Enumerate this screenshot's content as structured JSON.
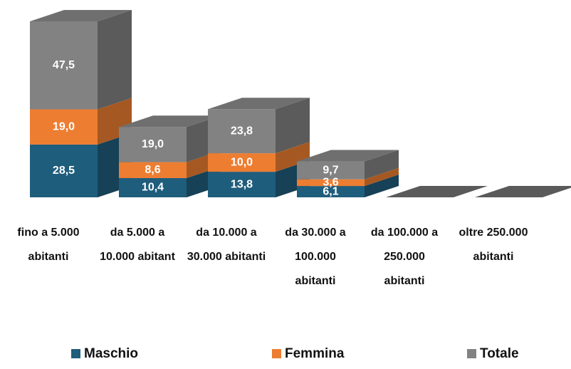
{
  "chart_data": {
    "type": "bar3d_stacked",
    "categories": [
      "fino a 5.000 abitanti",
      "da 5.000 a 10.000 abitant",
      "da 10.000 a 30.000 abitanti",
      "da 30.000 a 100.000 abitanti",
      "da 100.000 a 250.000 abitanti",
      "oltre 250.000 abitanti"
    ],
    "series": [
      {
        "name": "Maschio",
        "color": "#1f5d7c",
        "values": [
          28.5,
          10.4,
          13.8,
          6.1,
          null,
          null
        ],
        "value_labels": [
          "28,5",
          "10,4",
          "13,8",
          "6,1",
          null,
          null
        ]
      },
      {
        "name": "Femmina",
        "color": "#ed7d31",
        "values": [
          19.0,
          8.6,
          10.0,
          3.6,
          null,
          null
        ],
        "value_labels": [
          "19,0",
          "8,6",
          "10,0",
          "3,6",
          null,
          null
        ]
      },
      {
        "name": "Totale",
        "color": "#828282",
        "values": [
          47.5,
          19.0,
          23.8,
          9.7,
          null,
          null
        ],
        "value_labels": [
          "47,5",
          "19,0",
          "23,8",
          "9,7",
          null,
          null
        ]
      }
    ],
    "legend": "bottom"
  }
}
